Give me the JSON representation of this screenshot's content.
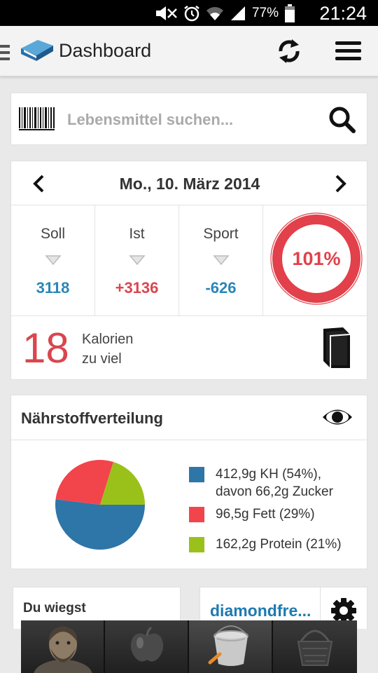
{
  "status_bar": {
    "battery_percent": "77%",
    "time": "21:24",
    "icons": [
      "mute-icon",
      "alarm-icon",
      "wifi-icon",
      "signal-icon",
      "battery-icon"
    ]
  },
  "action_bar": {
    "title": "Dashboard",
    "icons": [
      "drawer-icon",
      "app-logo-icon",
      "sync-icon",
      "menu-icon"
    ]
  },
  "search": {
    "placeholder": "Lebensmittel suchen...",
    "icons": [
      "barcode-icon",
      "search-icon"
    ]
  },
  "day": {
    "date": "Mo., 10. März 2014",
    "stats": [
      {
        "label": "Soll",
        "value": "3118",
        "color": "#2a86b8"
      },
      {
        "label": "Ist",
        "value": "+3136",
        "color": "#d9464e"
      },
      {
        "label": "Sport",
        "value": "-626",
        "color": "#2a86b8"
      }
    ],
    "progress_percent": "101%",
    "progress_fraction": 1.01,
    "ring_color": "#e2404a",
    "over_amount": "18",
    "over_label_line1": "Kalorien",
    "over_label_line2": "zu viel"
  },
  "nutrients": {
    "title": "Nährstoffverteilung",
    "chart_data": {
      "type": "pie",
      "slices": [
        {
          "label": "412,9g KH (54%), davon 66,2g Zucker",
          "percent": 54,
          "grams": 412.9,
          "color": "#2e75a8"
        },
        {
          "label": "96,5g Fett (29%)",
          "percent": 29,
          "grams": 96.5,
          "color": "#f2444b"
        },
        {
          "label": "162,2g Protein (21%)",
          "percent": 21,
          "grams": 162.2,
          "color": "#9ac11a"
        }
      ]
    },
    "legend": [
      {
        "line1": "412,9g KH (54%),",
        "line2": "davon 66,2g Zucker"
      },
      {
        "line1": "96,5g Fett (29%)",
        "line2": ""
      },
      {
        "line1": "162,2g Protein (21%)",
        "line2": ""
      }
    ]
  },
  "weight": {
    "label": "Du wiegst"
  },
  "user": {
    "name": "diamondfre..."
  },
  "bottom_tabs": [
    {
      "name": "avatar-tab",
      "icon": "avatar-icon"
    },
    {
      "name": "food-tab",
      "icon": "apple-icon"
    },
    {
      "name": "bucket-tab",
      "icon": "bucket-icon",
      "active": true
    },
    {
      "name": "basket-tab",
      "icon": "basket-icon"
    }
  ]
}
